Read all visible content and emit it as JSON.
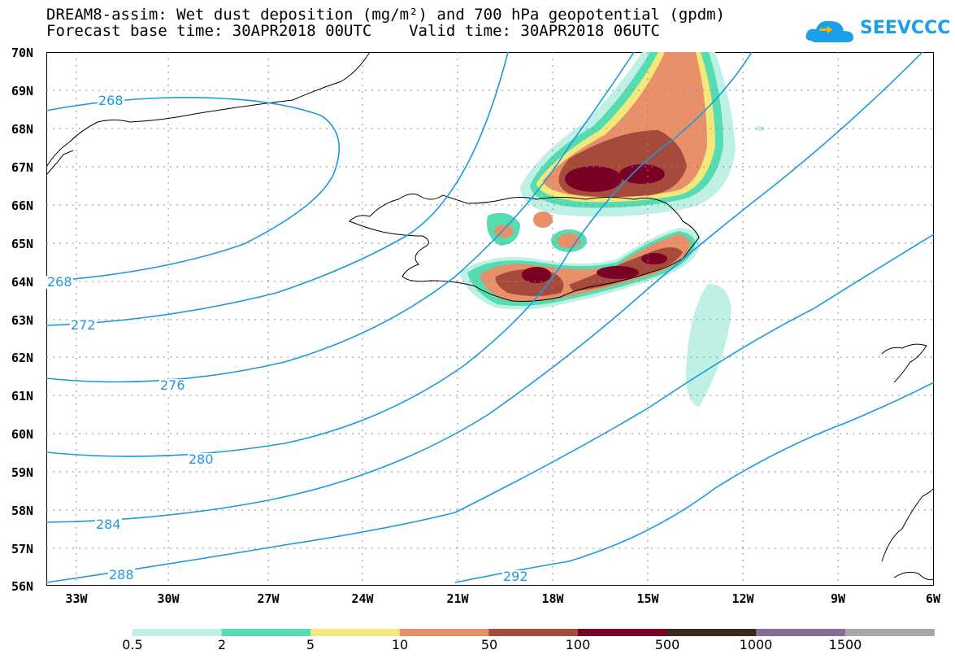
{
  "header": {
    "title_line1": "DREAM8-assim: Wet dust deposition (mg/m²) and 700 hPa geopotential (gpdm)",
    "title_line2": "Forecast base time: 30APR2018 00UTC    Valid time: 30APR2018 06UTC",
    "logo_text": "SEEVCCC"
  },
  "map": {
    "lat_labels": [
      "70N",
      "69N",
      "68N",
      "67N",
      "66N",
      "65N",
      "64N",
      "63N",
      "62N",
      "61N",
      "60N",
      "59N",
      "58N",
      "57N",
      "56N"
    ],
    "lon_labels": [
      "33W",
      "30W",
      "27W",
      "24W",
      "21W",
      "18W",
      "15W",
      "12W",
      "9W",
      "6W"
    ],
    "contour_labels": [
      "268",
      "268",
      "272",
      "276",
      "280",
      "284",
      "288",
      "292"
    ],
    "contour_color": "#1a9ae0",
    "coast_color": "#000000"
  },
  "colorbar": {
    "labels": [
      "0.5",
      "2",
      "5",
      "10",
      "50",
      "100",
      "500",
      "1000",
      "1500"
    ],
    "colors": [
      "#bff0e6",
      "#55dcb0",
      "#f5e87a",
      "#e8906a",
      "#a64a3c",
      "#7a0026",
      "#3a2a1a",
      "#8a6a9a",
      "#a8a8a8"
    ]
  }
}
